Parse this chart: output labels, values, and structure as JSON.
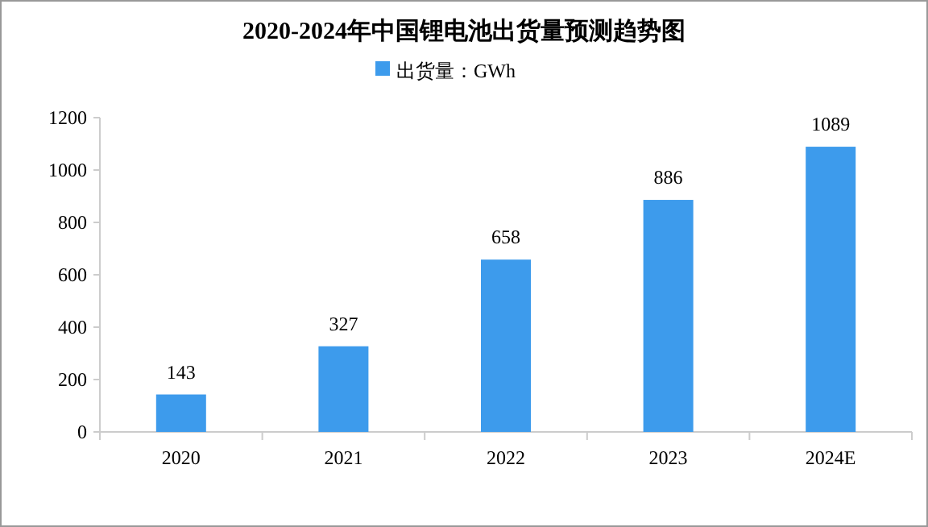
{
  "chart_data": {
    "type": "bar",
    "title": "2020-2024年中国锂电池出货量预测趋势图",
    "categories": [
      "2020",
      "2021",
      "2022",
      "2023",
      "2024E"
    ],
    "series": [
      {
        "name": "出货量：GWh",
        "color": "#3d9bec",
        "values": [
          143,
          327,
          658,
          886,
          1089
        ]
      }
    ],
    "ylim": [
      0,
      1200
    ],
    "yticks": [
      0,
      200,
      400,
      600,
      800,
      1000,
      1200
    ],
    "grid": false,
    "legend": "top",
    "data_labels": true
  }
}
